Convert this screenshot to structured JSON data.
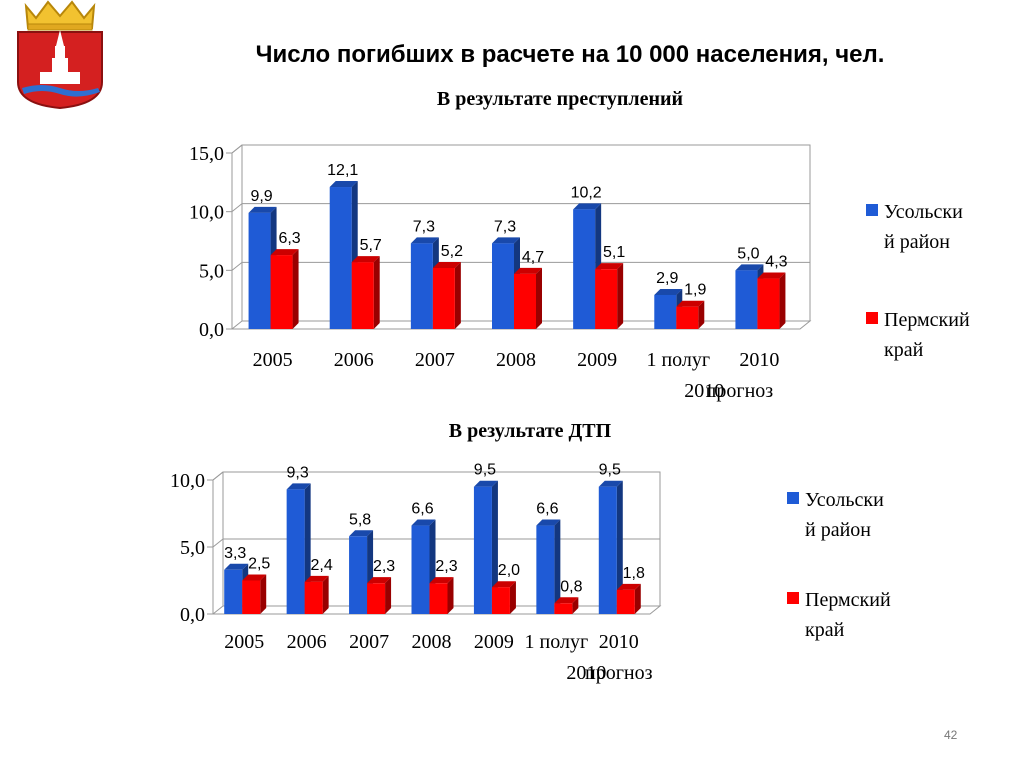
{
  "header": {
    "title": "Число погибших в расчете на 10 000 населения, чел."
  },
  "page_number": "42",
  "colors": {
    "blue": "#1f5bd6",
    "red": "#ff0000"
  },
  "logo": "coat-of-arms-usolsky-district",
  "chart_data": [
    {
      "type": "bar",
      "title": "В результате преступлений",
      "categories": [
        "2005",
        "2006",
        "2007",
        "2008",
        "2009",
        "1 полуг 2010",
        "2010 прогноз"
      ],
      "series": [
        {
          "name": "Усольский  район",
          "values": [
            9.9,
            12.1,
            7.3,
            7.3,
            10.2,
            2.9,
            5.0
          ],
          "labels": [
            "9,9",
            "12,1",
            "7,3",
            "7,3",
            "10,2",
            "2,9",
            "5,0"
          ]
        },
        {
          "name": "Пермский край",
          "values": [
            6.3,
            5.7,
            5.2,
            4.7,
            5.1,
            1.9,
            4.3
          ],
          "labels": [
            "6,3",
            "5,7",
            "5,2",
            "4,7",
            "5,1",
            "1,9",
            "4,3"
          ]
        }
      ],
      "ylim": [
        0,
        15
      ],
      "yticks": [
        "0,0",
        "5,0",
        "10,0",
        "15,0"
      ],
      "grid": true,
      "legend": "right"
    },
    {
      "type": "bar",
      "title": "В результате ДТП",
      "categories": [
        "2005",
        "2006",
        "2007",
        "2008",
        "2009",
        "1 полуг 2010",
        "2010 прогноз"
      ],
      "series": [
        {
          "name": "Усольский  район",
          "values": [
            3.3,
            9.3,
            5.8,
            6.6,
            9.5,
            6.6,
            9.5
          ],
          "labels": [
            "3,3",
            "9,3",
            "5,8",
            "6,6",
            "9,5",
            "6,6",
            "9,5"
          ]
        },
        {
          "name": "Пермский край",
          "values": [
            2.5,
            2.4,
            2.3,
            2.3,
            2.0,
            0.8,
            1.8
          ],
          "labels": [
            "2,5",
            "2,4",
            "2,3",
            "2,3",
            "2,0",
            "0,8",
            "1,8"
          ]
        }
      ],
      "ylim": [
        0,
        10
      ],
      "yticks": [
        "0,0",
        "5,0",
        "10,0"
      ],
      "grid": true,
      "legend": "right"
    }
  ]
}
